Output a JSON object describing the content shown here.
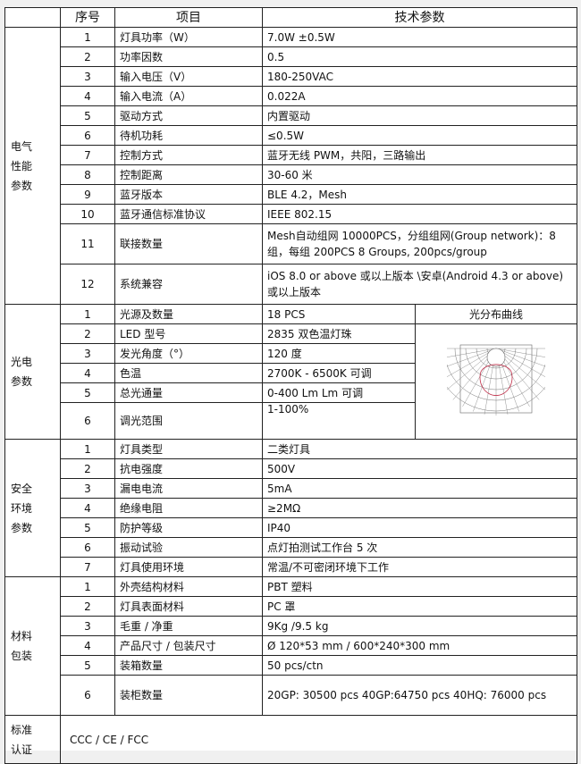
{
  "header": {
    "index": "序号",
    "item": "项目",
    "params": "技术参数"
  },
  "sections": [
    {
      "name": "电气\n性能\n参数",
      "rows": [
        [
          "1",
          "灯具功率（W）",
          "7.0W   ±0.5W"
        ],
        [
          "2",
          "功率因数",
          "0.5"
        ],
        [
          "3",
          "输入电压（V）",
          "180-250VAC"
        ],
        [
          "4",
          "输入电流（A）",
          "0.022A"
        ],
        [
          "5",
          "驱动方式",
          "内置驱动"
        ],
        [
          "6",
          "待机功耗",
          "≤0.5W"
        ],
        [
          "7",
          "控制方式",
          "蓝牙无线 PWM，共阳，三路输出"
        ],
        [
          "8",
          "控制距离",
          "30-60 米"
        ],
        [
          "9",
          "蓝牙版本",
          "BLE 4.2，Mesh"
        ],
        [
          "10",
          "蓝牙通信标准协议",
          "IEEE 802.15"
        ],
        [
          "11",
          "联接数量",
          "Mesh自动组网 10000PCS，分组组网(Group network)：8组，每组 200PCS  8 Groups, 200pcs/group"
        ],
        [
          "12",
          "系统兼容",
          "iOS 8.0 or above 或以上版本 \\安卓(Android 4.3 or above)或以上版本"
        ]
      ]
    },
    {
      "name": "光电\n参数",
      "curve_title": "光分布曲线",
      "rows": [
        [
          "1",
          "光源及数量",
          "18 PCS"
        ],
        [
          "2",
          "LED 型号",
          "2835 双色温灯珠"
        ],
        [
          "3",
          "发光角度（°）",
          "120 度"
        ],
        [
          "4",
          "色温",
          "2700K - 6500K  可调"
        ],
        [
          "5",
          "总光通量",
          "0-400 Lm   Lm 可调"
        ],
        [
          "6",
          "调光范围",
          "1-100%"
        ]
      ]
    },
    {
      "name": "安全\n环境\n参数",
      "rows": [
        [
          "1",
          "灯具类型",
          "二类灯具"
        ],
        [
          "2",
          "抗电强度",
          "500V"
        ],
        [
          "3",
          "漏电电流",
          "5mA"
        ],
        [
          "4",
          "绝缘电阻",
          "≥2MΩ"
        ],
        [
          "5",
          "防护等级",
          "IP40"
        ],
        [
          "6",
          "振动试验",
          "点灯拍测试工作台 5 次"
        ],
        [
          "7",
          "灯具使用环境",
          "常温/不可密闭环境下工作"
        ]
      ]
    },
    {
      "name": "材料\n包装",
      "rows": [
        [
          "1",
          "外壳结构材料",
          "PBT 塑料"
        ],
        [
          "2",
          "灯具表面材料",
          "PC 罩"
        ],
        [
          "3",
          "毛重 / 净重",
          "9Kg /9.5 kg"
        ],
        [
          "4",
          "产品尺寸 / 包装尺寸",
          "Ø 120*53 mm / 600*240*300 mm"
        ],
        [
          "5",
          "装箱数量",
          "50 pcs/ctn"
        ],
        [
          "6",
          "装柜数量",
          "20GP: 30500 pcs    40GP:64750 pcs    40HQ: 76000 pcs"
        ]
      ]
    },
    {
      "name": "标准\n认证",
      "value": "CCC / CE / FCC"
    }
  ]
}
